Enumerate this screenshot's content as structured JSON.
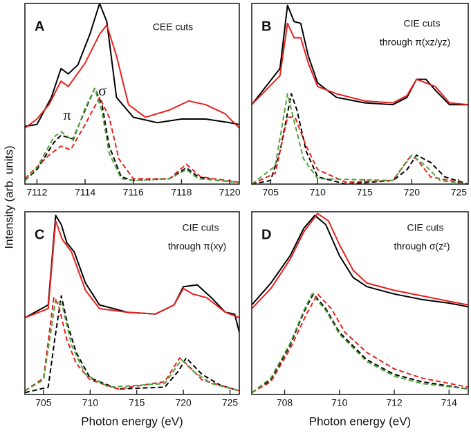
{
  "ylabel": "Intensity  (arb. units)",
  "chart_data": [
    {
      "type": "line",
      "label": "A",
      "notes": [
        "CEE cuts"
      ],
      "symbols": [
        "σ",
        "π"
      ],
      "xlim": [
        7111.5,
        7120.4
      ],
      "xticks": [
        7112,
        7114,
        7116,
        7118,
        7120
      ],
      "ylim": [
        0,
        100
      ],
      "series": [
        {
          "color": "#000000",
          "dash": false,
          "x": [
            7111.5,
            7112,
            7112.6,
            7113,
            7113.3,
            7113.7,
            7114.2,
            7114.6,
            7114.9,
            7115.3,
            7116,
            7117,
            7118,
            7119,
            7120,
            7120.4
          ],
          "values": [
            32,
            33,
            48,
            64,
            61,
            66,
            83,
            100,
            90,
            48,
            37,
            34,
            36,
            36,
            34,
            33
          ]
        },
        {
          "color": "#e8201c",
          "dash": false,
          "x": [
            7111.5,
            7112,
            7112.5,
            7113,
            7113.3,
            7114,
            7114.6,
            7114.9,
            7115.3,
            7115.8,
            7116.5,
            7117.5,
            7118.3,
            7119,
            7119.8,
            7120.4
          ],
          "values": [
            31,
            36,
            44,
            57,
            54,
            67,
            83,
            88,
            71,
            44,
            37,
            41,
            46,
            44,
            39,
            31
          ]
        },
        {
          "color": "#000000",
          "dash": true,
          "x": [
            7111.5,
            7112,
            7112.7,
            7113,
            7113.5,
            7114,
            7114.4,
            7114.7,
            7115,
            7115.5,
            7116,
            7117.5,
            7118.2,
            7118.7,
            7119.5,
            7120.4
          ],
          "values": [
            2,
            8,
            23,
            27,
            25,
            41,
            53,
            44,
            21,
            4,
            2,
            3,
            9,
            4,
            2,
            1
          ]
        },
        {
          "color": "#e8201c",
          "dash": true,
          "x": [
            7111.5,
            7112.5,
            7113,
            7113.4,
            7114,
            7114.6,
            7115,
            7115.4,
            7116,
            7117.5,
            7118.2,
            7118.8,
            7120.4
          ],
          "values": [
            3,
            16,
            21,
            19,
            33,
            48,
            37,
            14,
            3,
            3,
            11,
            4,
            1
          ]
        },
        {
          "color": "#4fa33a",
          "dash": true,
          "x": [
            7111.5,
            7112,
            7112.7,
            7113,
            7113.5,
            7114,
            7114.4,
            7114.7,
            7115,
            7115.5,
            7116,
            7117.5,
            7118.2,
            7118.7,
            7119.5,
            7120.4
          ],
          "values": [
            2,
            9,
            26,
            29,
            24,
            42,
            53,
            40,
            17,
            3,
            2,
            3,
            8,
            3,
            2,
            1
          ]
        }
      ]
    },
    {
      "type": "line",
      "label": "B",
      "notes": [
        "CIE cuts",
        "through π(xz/yz)"
      ],
      "xlim": [
        703,
        726
      ],
      "xticks": [
        705,
        710,
        715,
        720,
        725
      ],
      "ylim": [
        0,
        100
      ],
      "series": [
        {
          "color": "#000000",
          "dash": false,
          "x": [
            703,
            706,
            706.8,
            707.5,
            708.2,
            709,
            710,
            712,
            715,
            718,
            719.5,
            720.5,
            721.5,
            722.5,
            724,
            726
          ],
          "values": [
            44,
            64,
            99,
            90,
            89,
            71,
            56,
            48,
            45,
            44,
            48,
            58,
            58,
            52,
            44,
            44
          ]
        },
        {
          "color": "#e8201c",
          "dash": false,
          "x": [
            703,
            706,
            706.8,
            707.5,
            708.2,
            709,
            710,
            712,
            715,
            718,
            719.5,
            720.5,
            721.5,
            722.5,
            724,
            726
          ],
          "values": [
            44,
            60,
            89,
            81,
            81,
            67,
            54,
            50,
            46,
            45,
            49,
            58,
            56,
            54,
            45,
            44
          ]
        },
        {
          "color": "#000000",
          "dash": true,
          "x": [
            703,
            705,
            706,
            707.2,
            707.8,
            708.8,
            710,
            713,
            718,
            719.5,
            720.5,
            722,
            723.5,
            726
          ],
          "values": [
            0,
            2,
            18,
            50,
            41,
            18,
            4,
            0,
            2,
            8,
            16,
            12,
            4,
            0
          ]
        },
        {
          "color": "#e8201c",
          "dash": true,
          "x": [
            703,
            705.5,
            706.8,
            707.6,
            708.8,
            710,
            713,
            718,
            719.8,
            720.5,
            722,
            726
          ],
          "values": [
            0,
            6,
            37,
            37,
            21,
            8,
            1,
            2,
            15,
            14,
            4,
            0
          ]
        },
        {
          "color": "#4fa33a",
          "dash": true,
          "x": [
            703,
            705.5,
            706.8,
            707.5,
            708.5,
            710,
            718,
            720,
            721.5,
            723,
            726
          ],
          "values": [
            0,
            10,
            50,
            35,
            14,
            3,
            2,
            16,
            10,
            2,
            0
          ]
        }
      ]
    },
    {
      "type": "line",
      "label": "C",
      "notes": [
        "CIE cuts",
        "through π(xy)"
      ],
      "xlabel": "Photon energy (eV)",
      "xlim": [
        703,
        726
      ],
      "xticks": [
        705,
        710,
        715,
        720,
        725
      ],
      "ylim": [
        0,
        100
      ],
      "series": [
        {
          "color": "#000000",
          "dash": false,
          "x": [
            703,
            705.5,
            706.3,
            706.9,
            707.5,
            708.3,
            709.5,
            711,
            714,
            717,
            719,
            720,
            721.5,
            723,
            724.5,
            725.5,
            726
          ],
          "values": [
            42,
            49,
            98,
            93,
            83,
            78,
            61,
            49,
            45,
            44,
            49,
            59,
            60,
            53,
            45,
            44,
            34
          ]
        },
        {
          "color": "#e8201c",
          "dash": false,
          "x": [
            703,
            705.5,
            706.3,
            707,
            708,
            709.5,
            711,
            714,
            717,
            719,
            720,
            721,
            722.5,
            724.5,
            726
          ],
          "values": [
            42,
            47,
            95,
            85,
            78,
            57,
            47,
            45,
            44,
            49,
            58,
            55,
            53,
            45,
            42
          ]
        },
        {
          "color": "#000000",
          "dash": true,
          "x": [
            703,
            705.5,
            706.2,
            706.9,
            707.6,
            708.5,
            710,
            713,
            718,
            719.5,
            720.3,
            722,
            724,
            726
          ],
          "values": [
            1,
            4,
            30,
            54,
            38,
            23,
            9,
            3,
            4,
            13,
            20,
            11,
            5,
            2
          ]
        },
        {
          "color": "#e8201c",
          "dash": true,
          "x": [
            703,
            705,
            706.1,
            706.6,
            707.5,
            708.5,
            710,
            713,
            718,
            719.6,
            720.5,
            722,
            726
          ],
          "values": [
            2,
            9,
            53,
            49,
            30,
            17,
            8,
            3,
            7,
            20,
            16,
            8,
            2
          ]
        },
        {
          "color": "#4fa33a",
          "dash": true,
          "x": [
            703,
            705,
            706.3,
            707,
            708,
            709.5,
            712,
            718,
            719.8,
            721,
            723,
            726
          ],
          "values": [
            2,
            8,
            52,
            49,
            27,
            11,
            4,
            6,
            19,
            13,
            6,
            2
          ]
        }
      ]
    },
    {
      "type": "line",
      "label": "D",
      "notes": [
        "CIE cuts",
        "through σ(z²)"
      ],
      "xlabel": "Photon energy (eV)",
      "xlim": [
        706.8,
        714.7
      ],
      "xticks": [
        708,
        710,
        712,
        714
      ],
      "ylim": [
        0,
        100
      ],
      "series": [
        {
          "color": "#000000",
          "dash": false,
          "x": [
            706.8,
            707.5,
            708.2,
            708.7,
            709.1,
            709.5,
            710,
            710.5,
            711,
            712,
            713,
            714,
            714.7
          ],
          "values": [
            49,
            61,
            76,
            91,
            98,
            93,
            76,
            64,
            59,
            55,
            52,
            50,
            48
          ]
        },
        {
          "color": "#e8201c",
          "dash": false,
          "x": [
            706.8,
            707.5,
            708.2,
            708.7,
            709.2,
            709.6,
            710,
            710.5,
            711,
            712,
            713,
            714,
            714.7
          ],
          "values": [
            47,
            58,
            74,
            89,
            99,
            95,
            82,
            68,
            61,
            57,
            54,
            51,
            49
          ]
        },
        {
          "color": "#000000",
          "dash": true,
          "x": [
            706.8,
            707.5,
            708.2,
            708.7,
            709.05,
            709.5,
            710,
            711,
            712,
            713,
            714.7
          ],
          "values": [
            1,
            8,
            27,
            45,
            55,
            47,
            34,
            19,
            11,
            7,
            3
          ]
        },
        {
          "color": "#e8201c",
          "dash": true,
          "x": [
            706.8,
            707.5,
            708.2,
            708.8,
            709.2,
            709.7,
            710.2,
            711,
            712,
            713,
            714.7
          ],
          "values": [
            1,
            7,
            25,
            44,
            55,
            47,
            34,
            23,
            14,
            9,
            4
          ]
        },
        {
          "color": "#4fa33a",
          "dash": true,
          "x": [
            706.8,
            707.5,
            708.2,
            708.7,
            709.0,
            709.5,
            710,
            711,
            712,
            713,
            714.7
          ],
          "values": [
            1,
            9,
            28,
            46,
            55,
            46,
            33,
            18,
            10,
            6,
            3
          ]
        }
      ]
    }
  ]
}
